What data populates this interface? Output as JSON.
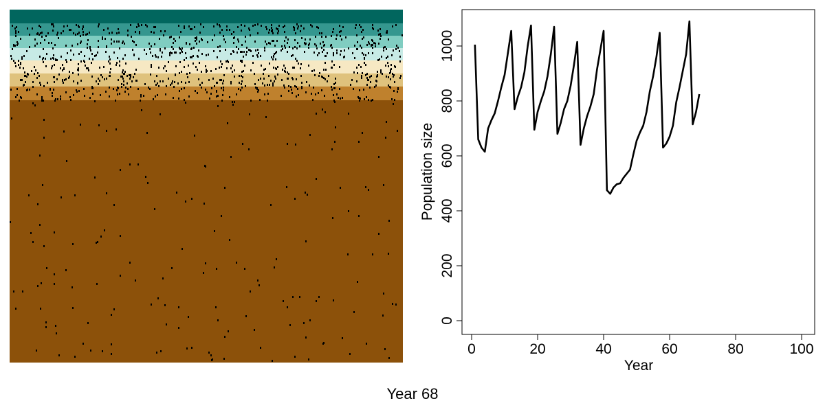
{
  "landscape": {
    "bands": [
      {
        "color": "#01665e"
      },
      {
        "color": "#35978f"
      },
      {
        "color": "#80cdc1"
      },
      {
        "color": "#c7eae5"
      },
      {
        "color": "#f6e8c3"
      },
      {
        "color": "#dfc27d"
      },
      {
        "color": "#bf812d"
      },
      {
        "color": "#8c510a"
      }
    ],
    "individual_color": "#000000"
  },
  "chart_data": {
    "type": "line",
    "title": "",
    "xlabel": "Year",
    "ylabel": "Population size",
    "xlim": [
      0,
      100
    ],
    "ylim": [
      0,
      1100
    ],
    "xticks": [
      "0",
      "20",
      "40",
      "60",
      "80",
      "100"
    ],
    "yticks": [
      "0",
      "200",
      "400",
      "600",
      "800",
      "1000"
    ],
    "xtick_values": [
      0,
      20,
      40,
      60,
      80,
      100
    ],
    "ytick_values": [
      0,
      200,
      400,
      600,
      800,
      1000
    ],
    "series": [
      {
        "color": "#000000",
        "x": [
          1,
          2,
          3,
          4,
          5,
          6,
          7,
          8,
          9,
          10,
          11,
          12,
          13,
          14,
          15,
          16,
          17,
          18,
          19,
          20,
          21,
          22,
          23,
          24,
          25,
          26,
          27,
          28,
          29,
          30,
          31,
          32,
          33,
          34,
          35,
          36,
          37,
          38,
          39,
          40,
          41,
          42,
          43,
          44,
          45,
          46,
          47,
          48,
          49,
          50,
          51,
          52,
          53,
          54,
          55,
          56,
          57,
          58,
          59,
          60,
          61,
          62,
          63,
          64,
          65,
          66,
          67,
          68,
          69
        ],
        "values": [
          1005,
          660,
          630,
          615,
          700,
          730,
          755,
          800,
          850,
          895,
          975,
          1055,
          770,
          815,
          850,
          905,
          1000,
          1075,
          695,
          760,
          800,
          835,
          890,
          970,
          1070,
          680,
          720,
          770,
          800,
          855,
          930,
          1015,
          640,
          700,
          745,
          780,
          825,
          915,
          985,
          1055,
          475,
          462,
          485,
          497,
          500,
          520,
          535,
          550,
          605,
          655,
          685,
          710,
          760,
          835,
          890,
          960,
          1048,
          630,
          645,
          670,
          710,
          795,
          850,
          910,
          970,
          1090,
          715,
          760,
          825
        ]
      }
    ],
    "grid": false,
    "legend": "none"
  },
  "caption": {
    "text": "Year 68"
  }
}
